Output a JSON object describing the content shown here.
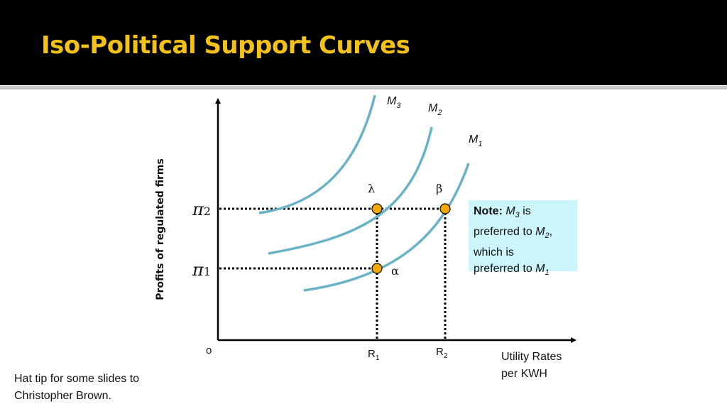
{
  "slide": {
    "title": "Iso-Political Support Curves",
    "footer_line1": "Hat tip for some slides to",
    "footer_line2": "Christopher Brown."
  },
  "diagram": {
    "y_axis_label": "Profits of regulated firms",
    "x_axis_label_line1": "Utility Rates",
    "x_axis_label_line2": "per KWH",
    "origin_label": "o",
    "y_ticks": [
      {
        "base": "π",
        "sub": "2"
      },
      {
        "base": "π",
        "sub": "1"
      }
    ],
    "x_ticks": [
      {
        "base": "R",
        "sub": "1"
      },
      {
        "base": "R",
        "sub": "2"
      }
    ],
    "curves": [
      {
        "base": "M",
        "sub": "3"
      },
      {
        "base": "M",
        "sub": "2"
      },
      {
        "base": "M",
        "sub": "1"
      }
    ],
    "points": [
      {
        "label": "λ"
      },
      {
        "label": "β"
      },
      {
        "label": "α"
      }
    ],
    "curve_color": "#6ab3c6",
    "point_color": "#f2a900"
  },
  "note": {
    "bold": "Note:",
    "m_base": "M",
    "m3_sub": "3",
    "text1": " is",
    "text2": "preferred to ",
    "m2_sub": "2",
    "comma": ",",
    "text3": "which is",
    "text4": "preferred to ",
    "m1_sub": "1"
  }
}
